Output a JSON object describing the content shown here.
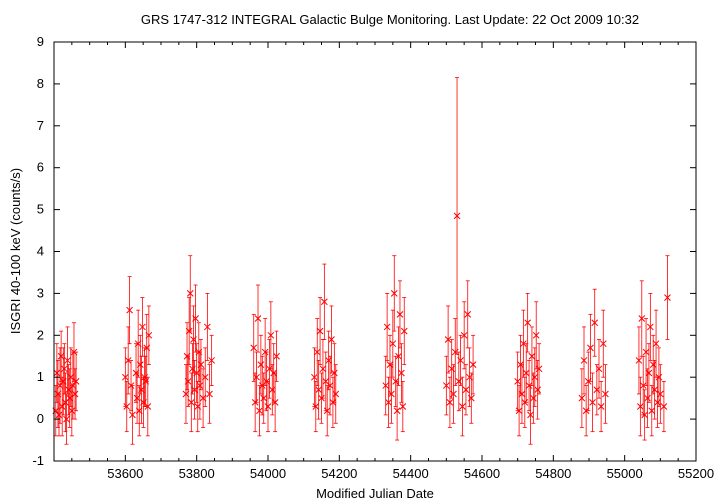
{
  "chart_data": {
    "type": "scatter",
    "title": "GRS 1747-312   INTEGRAL Galactic Bulge Monitoring.  Last Update: 22 Oct 2009 10:32",
    "xlabel": "Modified Julian Date",
    "ylabel": "ISGRI 40-100 keV (counts/s)",
    "xlim": [
      53400,
      55200
    ],
    "ylim": [
      -1,
      9
    ],
    "xticks": [
      53600,
      53800,
      54000,
      54200,
      54400,
      54600,
      54800,
      55000,
      55200
    ],
    "yticks": [
      -1,
      0,
      1,
      2,
      3,
      4,
      5,
      6,
      7,
      8,
      9
    ],
    "grid": false,
    "legend": "none",
    "color": "#ff0000",
    "marker": "x",
    "series": [
      {
        "points": [
          {
            "x": 53405,
            "y": 0.2,
            "err": 0.6
          },
          {
            "x": 53408,
            "y": 1.1,
            "err": 0.7
          },
          {
            "x": 53411,
            "y": 0.6,
            "err": 0.8
          },
          {
            "x": 53414,
            "y": 0.1,
            "err": 0.5
          },
          {
            "x": 53417,
            "y": 0.8,
            "err": 0.9
          },
          {
            "x": 53420,
            "y": 1.5,
            "err": 0.6
          },
          {
            "x": 53423,
            "y": 0.3,
            "err": 0.7
          },
          {
            "x": 53426,
            "y": 0.9,
            "err": 0.8
          },
          {
            "x": 53429,
            "y": 1.2,
            "err": 0.6
          },
          {
            "x": 53432,
            "y": 0.4,
            "err": 0.7
          },
          {
            "x": 53435,
            "y": 0.0,
            "err": 0.6
          },
          {
            "x": 53438,
            "y": 1.4,
            "err": 0.8
          },
          {
            "x": 53441,
            "y": 0.7,
            "err": 0.6
          },
          {
            "x": 53444,
            "y": 0.5,
            "err": 0.7
          },
          {
            "x": 53447,
            "y": 1.0,
            "err": 0.7
          },
          {
            "x": 53450,
            "y": 0.2,
            "err": 0.6
          },
          {
            "x": 53453,
            "y": 0.8,
            "err": 0.8
          },
          {
            "x": 53456,
            "y": 1.6,
            "err": 0.7
          },
          {
            "x": 53459,
            "y": 0.6,
            "err": 0.6
          },
          {
            "x": 53462,
            "y": 0.9,
            "err": 0.7
          },
          {
            "x": 53600,
            "y": 1.0,
            "err": 0.7
          },
          {
            "x": 53604,
            "y": 0.3,
            "err": 0.6
          },
          {
            "x": 53608,
            "y": 1.4,
            "err": 0.8
          },
          {
            "x": 53612,
            "y": 2.6,
            "err": 0.8
          },
          {
            "x": 53616,
            "y": 0.8,
            "err": 0.6
          },
          {
            "x": 53620,
            "y": 0.1,
            "err": 0.7
          },
          {
            "x": 53630,
            "y": 1.1,
            "err": 0.7
          },
          {
            "x": 53633,
            "y": 0.5,
            "err": 0.6
          },
          {
            "x": 53636,
            "y": 1.8,
            "err": 0.8
          },
          {
            "x": 53639,
            "y": 0.2,
            "err": 0.6
          },
          {
            "x": 53642,
            "y": 1.3,
            "err": 0.7
          },
          {
            "x": 53645,
            "y": 0.7,
            "err": 0.8
          },
          {
            "x": 53648,
            "y": 2.2,
            "err": 0.7
          },
          {
            "x": 53651,
            "y": 0.4,
            "err": 0.6
          },
          {
            "x": 53654,
            "y": 1.0,
            "err": 0.7
          },
          {
            "x": 53657,
            "y": 0.9,
            "err": 0.6
          },
          {
            "x": 53660,
            "y": 1.7,
            "err": 0.8
          },
          {
            "x": 53663,
            "y": 0.3,
            "err": 0.7
          },
          {
            "x": 53666,
            "y": 2.0,
            "err": 0.7
          },
          {
            "x": 53770,
            "y": 0.6,
            "err": 0.7
          },
          {
            "x": 53773,
            "y": 1.5,
            "err": 0.8
          },
          {
            "x": 53776,
            "y": 0.9,
            "err": 0.6
          },
          {
            "x": 53779,
            "y": 2.1,
            "err": 0.8
          },
          {
            "x": 53782,
            "y": 3.0,
            "err": 0.9
          },
          {
            "x": 53785,
            "y": 0.4,
            "err": 0.7
          },
          {
            "x": 53788,
            "y": 1.2,
            "err": 0.6
          },
          {
            "x": 53791,
            "y": 1.9,
            "err": 0.8
          },
          {
            "x": 53794,
            "y": 0.7,
            "err": 0.7
          },
          {
            "x": 53797,
            "y": 2.4,
            "err": 0.8
          },
          {
            "x": 53800,
            "y": 1.1,
            "err": 0.7
          },
          {
            "x": 53803,
            "y": 0.3,
            "err": 0.6
          },
          {
            "x": 53806,
            "y": 1.6,
            "err": 0.7
          },
          {
            "x": 53809,
            "y": 0.8,
            "err": 0.8
          },
          {
            "x": 53812,
            "y": 1.3,
            "err": 0.6
          },
          {
            "x": 53818,
            "y": 0.5,
            "err": 0.7
          },
          {
            "x": 53824,
            "y": 1.0,
            "err": 0.7
          },
          {
            "x": 53830,
            "y": 2.2,
            "err": 0.8
          },
          {
            "x": 53836,
            "y": 0.6,
            "err": 0.7
          },
          {
            "x": 53842,
            "y": 1.4,
            "err": 0.6
          },
          {
            "x": 53960,
            "y": 1.7,
            "err": 0.8
          },
          {
            "x": 53964,
            "y": 0.4,
            "err": 0.7
          },
          {
            "x": 53968,
            "y": 1.0,
            "err": 0.6
          },
          {
            "x": 53972,
            "y": 2.4,
            "err": 0.8
          },
          {
            "x": 53976,
            "y": 0.2,
            "err": 0.6
          },
          {
            "x": 53980,
            "y": 1.3,
            "err": 0.7
          },
          {
            "x": 53984,
            "y": 0.8,
            "err": 0.7
          },
          {
            "x": 53988,
            "y": 0.5,
            "err": 0.6
          },
          {
            "x": 53992,
            "y": 1.6,
            "err": 0.8
          },
          {
            "x": 53996,
            "y": 0.9,
            "err": 0.7
          },
          {
            "x": 54000,
            "y": 0.3,
            "err": 0.6
          },
          {
            "x": 54004,
            "y": 1.2,
            "err": 0.7
          },
          {
            "x": 54008,
            "y": 2.0,
            "err": 0.8
          },
          {
            "x": 54012,
            "y": 0.7,
            "err": 0.6
          },
          {
            "x": 54016,
            "y": 1.1,
            "err": 0.7
          },
          {
            "x": 54020,
            "y": 0.4,
            "err": 0.7
          },
          {
            "x": 54024,
            "y": 1.5,
            "err": 0.6
          },
          {
            "x": 54130,
            "y": 1.0,
            "err": 0.7
          },
          {
            "x": 54134,
            "y": 0.3,
            "err": 0.6
          },
          {
            "x": 54138,
            "y": 1.6,
            "err": 0.8
          },
          {
            "x": 54142,
            "y": 0.7,
            "err": 0.7
          },
          {
            "x": 54146,
            "y": 2.1,
            "err": 0.8
          },
          {
            "x": 54150,
            "y": 0.5,
            "err": 0.6
          },
          {
            "x": 54154,
            "y": 1.2,
            "err": 0.7
          },
          {
            "x": 54158,
            "y": 2.8,
            "err": 0.9
          },
          {
            "x": 54162,
            "y": 0.9,
            "err": 0.7
          },
          {
            "x": 54166,
            "y": 0.2,
            "err": 0.6
          },
          {
            "x": 54170,
            "y": 1.4,
            "err": 0.7
          },
          {
            "x": 54174,
            "y": 0.8,
            "err": 0.7
          },
          {
            "x": 54178,
            "y": 1.9,
            "err": 0.8
          },
          {
            "x": 54182,
            "y": 0.4,
            "err": 0.6
          },
          {
            "x": 54186,
            "y": 1.1,
            "err": 0.7
          },
          {
            "x": 54190,
            "y": 0.6,
            "err": 0.7
          },
          {
            "x": 54330,
            "y": 0.8,
            "err": 0.7
          },
          {
            "x": 54334,
            "y": 2.2,
            "err": 0.8
          },
          {
            "x": 54338,
            "y": 0.4,
            "err": 0.6
          },
          {
            "x": 54342,
            "y": 1.3,
            "err": 0.7
          },
          {
            "x": 54346,
            "y": 0.6,
            "err": 0.7
          },
          {
            "x": 54350,
            "y": 1.8,
            "err": 0.8
          },
          {
            "x": 54354,
            "y": 3.0,
            "err": 0.9
          },
          {
            "x": 54358,
            "y": 0.9,
            "err": 0.6
          },
          {
            "x": 54362,
            "y": 0.2,
            "err": 0.7
          },
          {
            "x": 54366,
            "y": 1.5,
            "err": 0.7
          },
          {
            "x": 54370,
            "y": 2.5,
            "err": 0.8
          },
          {
            "x": 54374,
            "y": 1.1,
            "err": 0.7
          },
          {
            "x": 54378,
            "y": 0.3,
            "err": 0.6
          },
          {
            "x": 54382,
            "y": 2.1,
            "err": 0.8
          },
          {
            "x": 54500,
            "y": 0.8,
            "err": 0.7
          },
          {
            "x": 54505,
            "y": 1.9,
            "err": 0.8
          },
          {
            "x": 54510,
            "y": 0.4,
            "err": 0.6
          },
          {
            "x": 54515,
            "y": 1.2,
            "err": 0.7
          },
          {
            "x": 54520,
            "y": 0.6,
            "err": 0.7
          },
          {
            "x": 54525,
            "y": 1.6,
            "err": 0.8
          },
          {
            "x": 54530,
            "y": 4.85,
            "err": 3.3
          },
          {
            "x": 54535,
            "y": 0.9,
            "err": 0.7
          },
          {
            "x": 54540,
            "y": 1.4,
            "err": 0.6
          },
          {
            "x": 54545,
            "y": 0.3,
            "err": 0.7
          },
          {
            "x": 54550,
            "y": 2.0,
            "err": 0.8
          },
          {
            "x": 54555,
            "y": 0.7,
            "err": 0.6
          },
          {
            "x": 54560,
            "y": 2.5,
            "err": 0.8
          },
          {
            "x": 54565,
            "y": 1.0,
            "err": 0.7
          },
          {
            "x": 54570,
            "y": 0.5,
            "err": 0.6
          },
          {
            "x": 54575,
            "y": 1.3,
            "err": 0.7
          },
          {
            "x": 54700,
            "y": 0.9,
            "err": 0.7
          },
          {
            "x": 54704,
            "y": 0.2,
            "err": 0.6
          },
          {
            "x": 54708,
            "y": 1.3,
            "err": 0.7
          },
          {
            "x": 54712,
            "y": 0.6,
            "err": 0.7
          },
          {
            "x": 54716,
            "y": 1.8,
            "err": 0.8
          },
          {
            "x": 54720,
            "y": 0.4,
            "err": 0.6
          },
          {
            "x": 54724,
            "y": 1.1,
            "err": 0.7
          },
          {
            "x": 54728,
            "y": 2.3,
            "err": 0.7
          },
          {
            "x": 54732,
            "y": 0.8,
            "err": 0.6
          },
          {
            "x": 54736,
            "y": 0.1,
            "err": 0.7
          },
          {
            "x": 54740,
            "y": 1.5,
            "err": 0.7
          },
          {
            "x": 54744,
            "y": 0.5,
            "err": 0.6
          },
          {
            "x": 54748,
            "y": 1.0,
            "err": 0.7
          },
          {
            "x": 54752,
            "y": 2.0,
            "err": 0.8
          },
          {
            "x": 54756,
            "y": 0.7,
            "err": 0.7
          },
          {
            "x": 54760,
            "y": 1.2,
            "err": 0.6
          },
          {
            "x": 54880,
            "y": 0.5,
            "err": 0.7
          },
          {
            "x": 54886,
            "y": 1.4,
            "err": 0.8
          },
          {
            "x": 54892,
            "y": 0.2,
            "err": 0.6
          },
          {
            "x": 54898,
            "y": 0.9,
            "err": 0.7
          },
          {
            "x": 54904,
            "y": 1.7,
            "err": 0.8
          },
          {
            "x": 54910,
            "y": 0.4,
            "err": 0.7
          },
          {
            "x": 54916,
            "y": 2.3,
            "err": 0.8
          },
          {
            "x": 54922,
            "y": 0.7,
            "err": 0.6
          },
          {
            "x": 54928,
            "y": 1.2,
            "err": 0.7
          },
          {
            "x": 54934,
            "y": 0.3,
            "err": 0.6
          },
          {
            "x": 54940,
            "y": 1.8,
            "err": 0.8
          },
          {
            "x": 54946,
            "y": 0.6,
            "err": 0.7
          },
          {
            "x": 55040,
            "y": 1.4,
            "err": 0.8
          },
          {
            "x": 55044,
            "y": 0.3,
            "err": 0.7
          },
          {
            "x": 55048,
            "y": 2.4,
            "err": 0.9
          },
          {
            "x": 55052,
            "y": 0.8,
            "err": 0.7
          },
          {
            "x": 55056,
            "y": 0.1,
            "err": 0.6
          },
          {
            "x": 55060,
            "y": 1.6,
            "err": 0.8
          },
          {
            "x": 55064,
            "y": 0.5,
            "err": 0.7
          },
          {
            "x": 55068,
            "y": 1.1,
            "err": 0.7
          },
          {
            "x": 55072,
            "y": 2.2,
            "err": 0.8
          },
          {
            "x": 55076,
            "y": 0.2,
            "err": 0.6
          },
          {
            "x": 55080,
            "y": 1.3,
            "err": 0.7
          },
          {
            "x": 55084,
            "y": 0.7,
            "err": 0.7
          },
          {
            "x": 55088,
            "y": 1.8,
            "err": 0.8
          },
          {
            "x": 55092,
            "y": 0.4,
            "err": 0.6
          },
          {
            "x": 55096,
            "y": 1.0,
            "err": 0.7
          },
          {
            "x": 55100,
            "y": 0.6,
            "err": 0.7
          },
          {
            "x": 55110,
            "y": 0.3,
            "err": 0.6
          },
          {
            "x": 55120,
            "y": 2.9,
            "err": 1.0
          }
        ]
      }
    ]
  }
}
